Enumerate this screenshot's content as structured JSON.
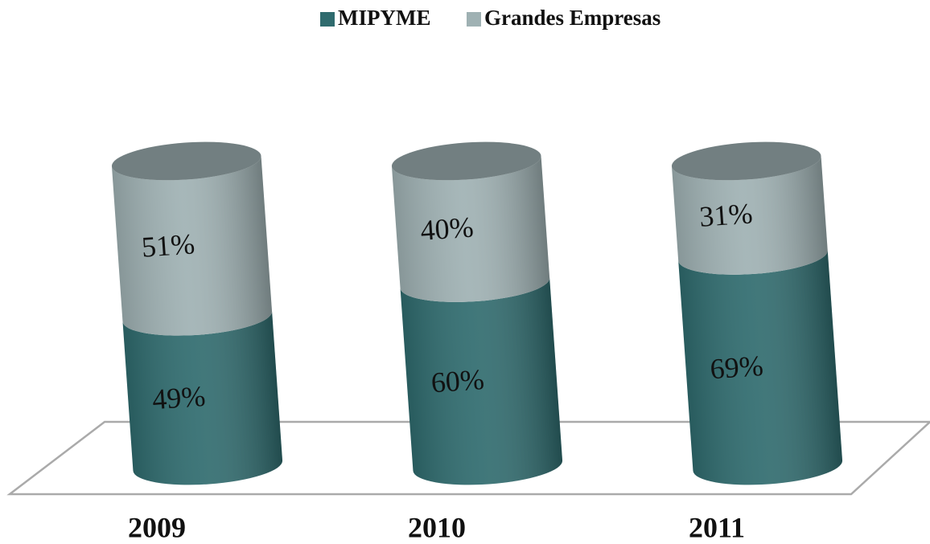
{
  "chart_data": {
    "type": "bar",
    "stacked": true,
    "categories": [
      "2009",
      "2010",
      "2011"
    ],
    "series": [
      {
        "name": "MIPYME",
        "color": "#2f6b6e",
        "values": [
          49,
          60,
          69
        ],
        "value_labels": [
          "49%",
          "60%",
          "69%"
        ]
      },
      {
        "name": "Grandes Empresas",
        "color": "#9fb1b3",
        "values": [
          51,
          40,
          31
        ],
        "value_labels": [
          "51%",
          "40%",
          "31%"
        ]
      }
    ],
    "legend": "top"
  }
}
